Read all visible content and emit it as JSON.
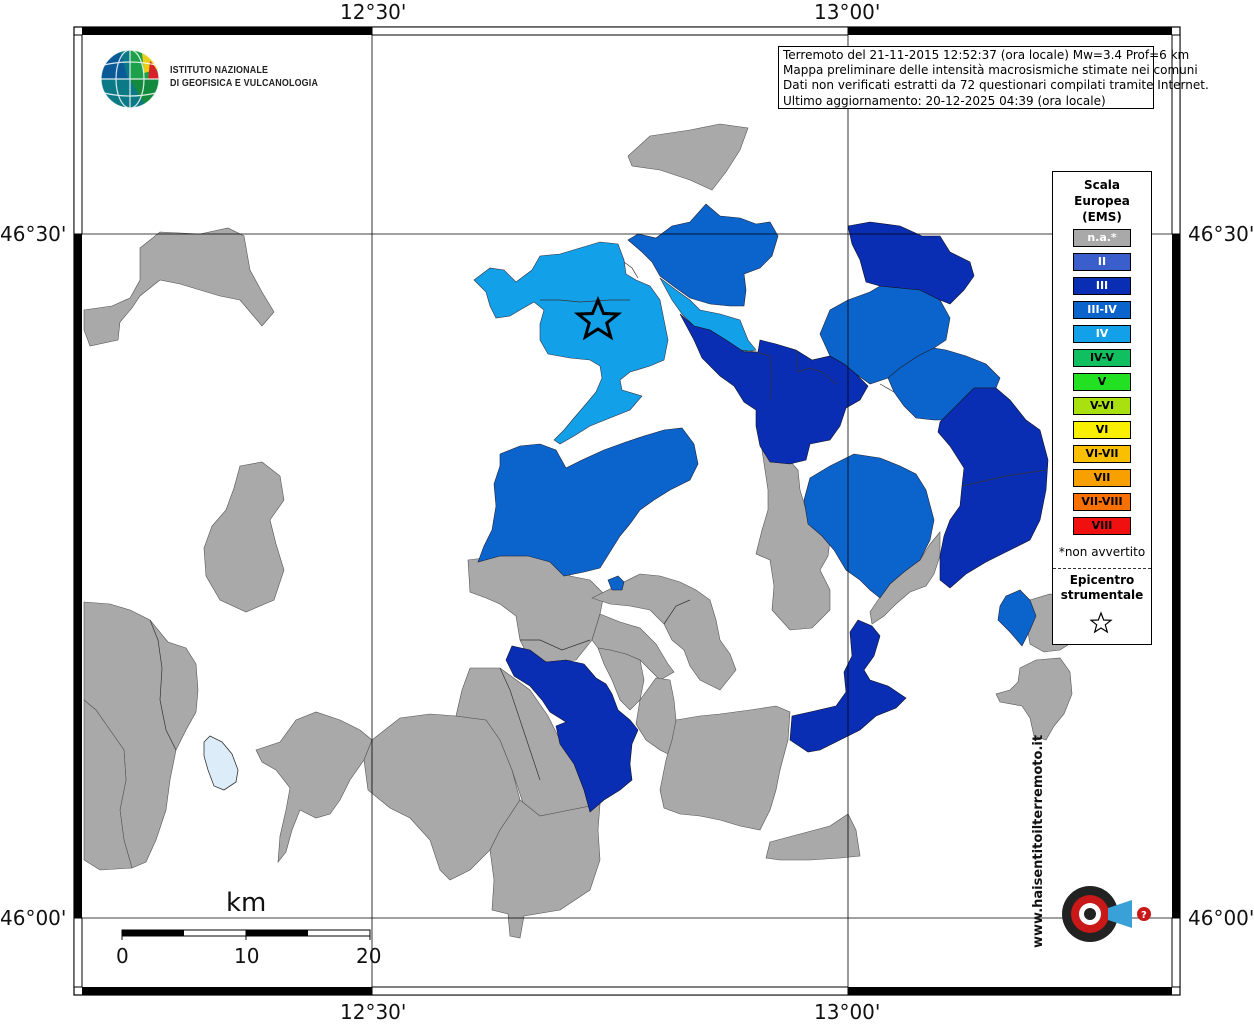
{
  "map": {
    "coord_labels": {
      "top_left_lon": "12°30'",
      "top_right_lon": "13°00'",
      "bottom_left_lon": "12°30'",
      "bottom_right_lon": "13°00'",
      "left_upper_lat": "46°30'",
      "left_lower_lat": "46°00'",
      "right_upper_lat": "46°30'",
      "right_lower_lat": "46°00'"
    },
    "colors": {
      "na": "#a9a9a9",
      "II": "#3a5fcd",
      "III": "#0a2eb3",
      "III-IV": "#0a64cc",
      "IV": "#12a0e8",
      "lake": "#dcecf8",
      "grid": "#000000"
    }
  },
  "ingv_logo": {
    "line1": "ISTITUTO NAZIONALE",
    "line2": "DI GEOFISICA E VULCANOLOGIA"
  },
  "info": {
    "line1": "Terremoto del 21-11-2015 12:52:37 (ora locale) Mw=3.4 Prof=6 km",
    "line2": "Mappa preliminare delle intensità macrosismiche stimate nei comuni",
    "line3": "Dati non verificati estratti da 72 questionari compilati tramite Internet.",
    "line4": "Ultimo aggiornamento: 20-12-2025 04:39 (ora locale)"
  },
  "legend": {
    "title1": "Scala",
    "title2": "Europea",
    "title3": "(EMS)",
    "items": [
      {
        "label": "n.a.*",
        "color": "#a9a9a9",
        "text_color": "#ffffff"
      },
      {
        "label": "II",
        "color": "#3a5fcd",
        "text_color": "#ffffff"
      },
      {
        "label": "III",
        "color": "#0a2eb3",
        "text_color": "#ffffff"
      },
      {
        "label": "III-IV",
        "color": "#0a64cc",
        "text_color": "#ffffff"
      },
      {
        "label": "IV",
        "color": "#12a0e8",
        "text_color": "#ffffff"
      },
      {
        "label": "IV-V",
        "color": "#10c060",
        "text_color": "#000000"
      },
      {
        "label": "V",
        "color": "#22e022",
        "text_color": "#000000"
      },
      {
        "label": "V-VI",
        "color": "#a8e010",
        "text_color": "#000000"
      },
      {
        "label": "VI",
        "color": "#f8f000",
        "text_color": "#000000"
      },
      {
        "label": "VI-VII",
        "color": "#f8c000",
        "text_color": "#000000"
      },
      {
        "label": "VII",
        "color": "#f8a000",
        "text_color": "#000000"
      },
      {
        "label": "VII-VIII",
        "color": "#f87000",
        "text_color": "#000000"
      },
      {
        "label": "VIII",
        "color": "#f01010",
        "text_color": "#000000"
      }
    ],
    "note": "*non avvertito",
    "epi1": "Epicentro",
    "epi2": "strumentale",
    "epi_icon": "star-icon"
  },
  "scalebar": {
    "unit": "km",
    "labels": [
      "0",
      "10",
      "20"
    ]
  },
  "hsit_logo": {
    "text": "www.haisentitoilterremoto.it"
  }
}
